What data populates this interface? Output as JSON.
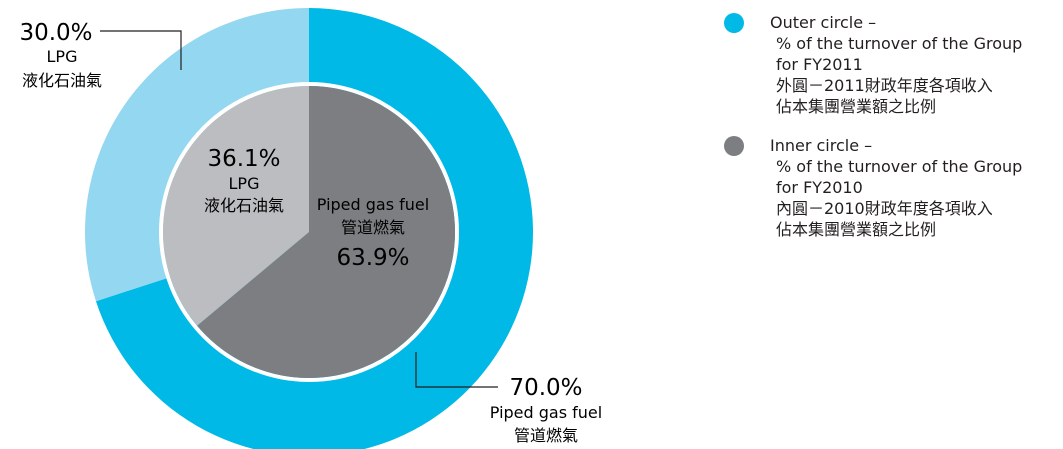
{
  "chart_data": {
    "type": "pie",
    "rings": [
      {
        "name": "Outer circle",
        "color_hint": "outer",
        "slices": [
          {
            "label_en": "Piped gas fuel",
            "label_zh": "管道燃氣",
            "value": 70.0,
            "pct_text": "70.0%",
            "color": "#00b9e6"
          },
          {
            "label_en": "LPG",
            "label_zh": "液化石油氣",
            "value": 30.0,
            "pct_text": "30.0%",
            "color": "#93d7f0"
          }
        ]
      },
      {
        "name": "Inner circle",
        "color_hint": "inner",
        "slices": [
          {
            "label_en": "Piped gas fuel",
            "label_zh": "管道燃氣",
            "value": 63.9,
            "pct_text": "63.9%",
            "color": "#7d7e81"
          },
          {
            "label_en": "LPG",
            "label_zh": "液化石油氣",
            "value": 36.1,
            "pct_text": "36.1%",
            "color": "#bcbdc0"
          }
        ]
      }
    ]
  },
  "legend": [
    {
      "color": "#00b9e6",
      "line1": "Outer circle –",
      "line2": "% of the turnover of the Group",
      "line3": "for FY2011",
      "line4": "外圓－2011財政年度各項收入",
      "line5": "佔本集團營業額之比例"
    },
    {
      "color": "#7d7e81",
      "line1": "Inner circle –",
      "line2": "% of the turnover of the Group",
      "line3": "for FY2010",
      "line4": "內圓－2010財政年度各項收入",
      "line5": "佔本集團營業額之比例"
    }
  ]
}
